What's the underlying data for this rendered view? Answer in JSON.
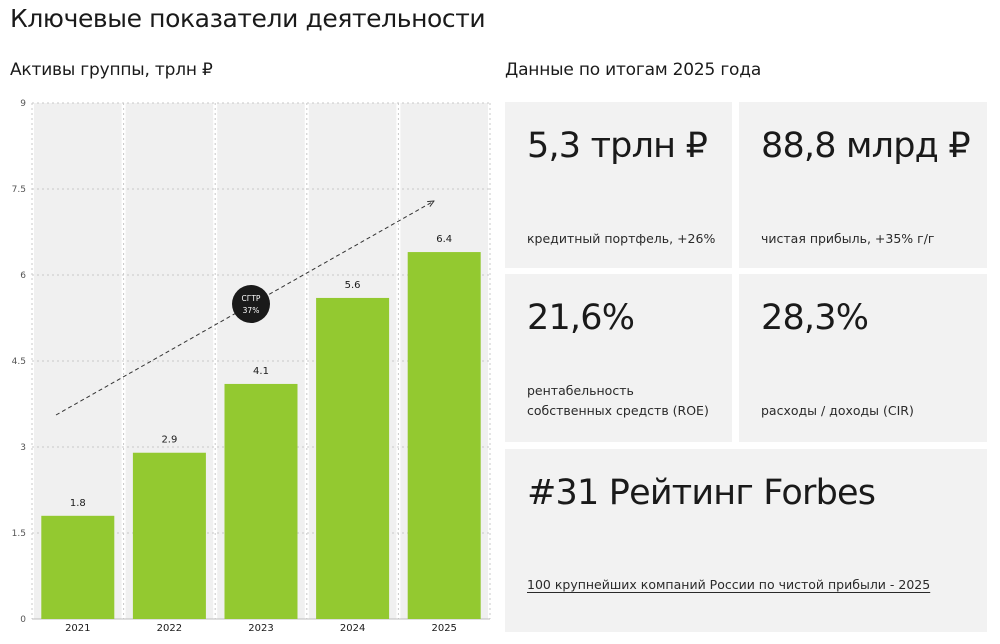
{
  "page": {
    "title": "Ключевые показатели деятельности",
    "side_title": "Данные по итогам 2025 года"
  },
  "colors": {
    "bar": "#93c930",
    "card_bg": "#f2f2f2",
    "badge": "#1a1a1a",
    "column_bg": "#f0f0f0"
  },
  "chart_data": {
    "type": "bar",
    "title": "Активы группы, трлн ₽",
    "categories": [
      "2021",
      "2022",
      "2023",
      "2024",
      "2025"
    ],
    "values": [
      1.8,
      2.9,
      4.1,
      5.6,
      6.4
    ],
    "data_labels": [
      "1.8",
      "2.9",
      "4.1",
      "5.6",
      "6.4"
    ],
    "yticks": [
      "0",
      "1.5",
      "3",
      "4.5",
      "6",
      "7.5",
      "9"
    ],
    "ylim": [
      0,
      9
    ],
    "grid": true,
    "trend_arrow": true,
    "badge": {
      "line1": "СГТР",
      "line2": "37%"
    }
  },
  "cards": {
    "loan": {
      "value": "5,3 трлн ₽",
      "caption": "кредитный портфель, +26%"
    },
    "profit": {
      "value": "88,8 млрд ₽",
      "caption": "чистая прибыль, +35% г/г"
    },
    "roe": {
      "value": "21,6%",
      "caption_line1": "рентабельность",
      "caption_line2": "собственных средств (ROE)"
    },
    "cir": {
      "value": "28,3%",
      "caption": "расходы / доходы (CIR)"
    },
    "forbes": {
      "value": "#31 Рейтинг Forbes",
      "caption": "100 крупнейших компаний России по чистой прибыли - 2025"
    }
  }
}
